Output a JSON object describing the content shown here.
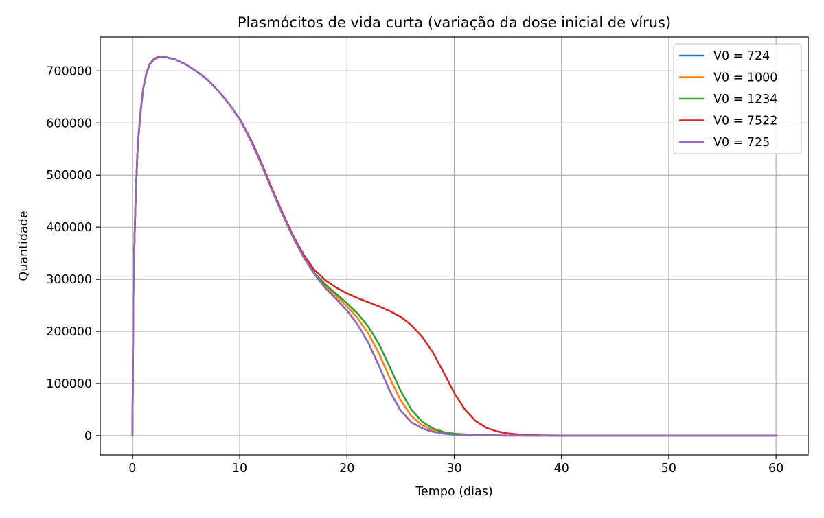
{
  "chart_data": {
    "type": "line",
    "title": "Plasmócitos de vida curta (variação da dose inicial de vírus)",
    "xlabel": "Tempo (dias)",
    "ylabel": "Quantidade",
    "xlim": [
      -3,
      63
    ],
    "ylim": [
      -37000,
      765000
    ],
    "xticks": [
      0,
      10,
      20,
      30,
      40,
      50,
      60
    ],
    "yticks": [
      0,
      100000,
      200000,
      300000,
      400000,
      500000,
      600000,
      700000
    ],
    "xtick_labels": [
      "0",
      "10",
      "20",
      "30",
      "40",
      "50",
      "60"
    ],
    "ytick_labels": [
      "0",
      "100000",
      "200000",
      "300000",
      "400000",
      "500000",
      "600000",
      "700000"
    ],
    "grid": true,
    "legend_position": "top-right",
    "series": [
      {
        "name": "V0 = 724",
        "color": "#1f77b4",
        "x": [
          0,
          0.1,
          0.3,
          0.5,
          0.8,
          1.0,
          1.3,
          1.6,
          2.0,
          2.5,
          3.0,
          4.0,
          5.0,
          6.0,
          7.0,
          8.0,
          9.0,
          10.0,
          11.0,
          12.0,
          13.0,
          14.0,
          15.0,
          16.0,
          17.0,
          18.0,
          19.0,
          20.0,
          21.0,
          22.0,
          23.0,
          24.0,
          25.0,
          26.0,
          27.0,
          28.0,
          29.0,
          30.0,
          32.0,
          35.0,
          40.0,
          50.0,
          60.0
        ],
        "y": [
          0,
          300000,
          460000,
          560000,
          630000,
          665000,
          695000,
          712000,
          722000,
          727000,
          727000,
          722000,
          712000,
          699000,
          683000,
          662000,
          637000,
          607000,
          568000,
          522000,
          472000,
          424000,
          380000,
          341000,
          309000,
          283000,
          262000,
          240000,
          213000,
          178000,
          133000,
          85000,
          48000,
          26000,
          14000,
          7500,
          4000,
          2000,
          700,
          100,
          5,
          0,
          0
        ]
      },
      {
        "name": "V0 = 1000",
        "color": "#ff7f0e",
        "x": [
          0,
          0.1,
          0.3,
          0.5,
          0.8,
          1.0,
          1.3,
          1.6,
          2.0,
          2.5,
          3.0,
          4.0,
          5.0,
          6.0,
          7.0,
          8.0,
          9.0,
          10.0,
          11.0,
          12.0,
          13.0,
          14.0,
          15.0,
          16.0,
          17.0,
          18.0,
          19.0,
          20.0,
          21.0,
          22.0,
          23.0,
          24.0,
          25.0,
          26.0,
          27.0,
          28.0,
          29.0,
          30.0,
          32.0,
          35.0,
          40.0,
          50.0,
          60.0
        ],
        "y": [
          0,
          300000,
          460000,
          560000,
          630000,
          665000,
          695000,
          712000,
          722000,
          727000,
          727000,
          722000,
          712000,
          699000,
          683000,
          662000,
          637000,
          607000,
          568000,
          522000,
          472000,
          424000,
          380000,
          341000,
          310000,
          287000,
          268000,
          248000,
          225000,
          196000,
          157000,
          110000,
          68000,
          38000,
          20000,
          10500,
          5500,
          2800,
          900,
          150,
          8,
          0,
          0
        ]
      },
      {
        "name": "V0 = 1234",
        "color": "#2ca02c",
        "x": [
          0,
          0.1,
          0.3,
          0.5,
          0.8,
          1.0,
          1.3,
          1.6,
          2.0,
          2.5,
          3.0,
          4.0,
          5.0,
          6.0,
          7.0,
          8.0,
          9.0,
          10.0,
          11.0,
          12.0,
          13.0,
          14.0,
          15.0,
          16.0,
          17.0,
          18.0,
          19.0,
          20.0,
          21.0,
          22.0,
          23.0,
          24.0,
          25.0,
          26.0,
          27.0,
          28.0,
          29.0,
          30.0,
          32.0,
          35.0,
          40.0,
          50.0,
          60.0
        ],
        "y": [
          0,
          300000,
          460000,
          560000,
          630000,
          665000,
          695000,
          712000,
          722000,
          727000,
          727000,
          722000,
          712000,
          699000,
          683000,
          662000,
          637000,
          607000,
          568000,
          522000,
          472000,
          424000,
          380000,
          341000,
          311000,
          290000,
          272000,
          254000,
          234000,
          209000,
          175000,
          131000,
          86000,
          50000,
          27000,
          14000,
          7000,
          3500,
          1100,
          200,
          10,
          0,
          0
        ]
      },
      {
        "name": "V0 = 7522",
        "color": "#d62728",
        "x": [
          0,
          0.1,
          0.3,
          0.5,
          0.8,
          1.0,
          1.3,
          1.6,
          2.0,
          2.5,
          3.0,
          4.0,
          5.0,
          6.0,
          7.0,
          8.0,
          9.0,
          10.0,
          11.0,
          12.0,
          13.0,
          14.0,
          15.0,
          16.0,
          17.0,
          18.0,
          19.0,
          20.0,
          21.0,
          22.0,
          23.0,
          24.0,
          25.0,
          26.0,
          27.0,
          28.0,
          29.0,
          30.0,
          31.0,
          32.0,
          33.0,
          34.0,
          35.0,
          36.0,
          38.0,
          40.0,
          45.0,
          50.0,
          60.0
        ],
        "y": [
          0,
          300000,
          460000,
          560000,
          630000,
          666000,
          696000,
          713000,
          723000,
          728000,
          727000,
          722000,
          712000,
          699000,
          683000,
          662000,
          637000,
          608000,
          570000,
          525000,
          475000,
          427000,
          383000,
          346000,
          317000,
          298000,
          284000,
          273000,
          264000,
          256000,
          248000,
          239000,
          228000,
          212000,
          190000,
          160000,
          122000,
          82000,
          50000,
          28000,
          15000,
          8000,
          4200,
          2200,
          600,
          150,
          5,
          0,
          0
        ]
      },
      {
        "name": "V0 = 725",
        "color": "#9467bd",
        "x": [
          0,
          0.1,
          0.3,
          0.5,
          0.8,
          1.0,
          1.3,
          1.6,
          2.0,
          2.5,
          3.0,
          4.0,
          5.0,
          6.0,
          7.0,
          8.0,
          9.0,
          10.0,
          11.0,
          12.0,
          13.0,
          14.0,
          15.0,
          16.0,
          17.0,
          18.0,
          19.0,
          20.0,
          21.0,
          22.0,
          23.0,
          24.0,
          25.0,
          26.0,
          27.0,
          28.0,
          29.0,
          30.0,
          32.0,
          35.0,
          40.0,
          50.0,
          60.0
        ],
        "y": [
          0,
          300000,
          460000,
          560000,
          630000,
          665000,
          695000,
          712000,
          722000,
          727000,
          727000,
          722000,
          712000,
          699000,
          683000,
          662000,
          637000,
          607000,
          568000,
          522000,
          472000,
          424000,
          380000,
          341000,
          309000,
          283000,
          262000,
          240000,
          213000,
          178000,
          133000,
          85000,
          48000,
          26000,
          14000,
          7500,
          4000,
          2000,
          700,
          100,
          5,
          0,
          0
        ]
      }
    ]
  }
}
